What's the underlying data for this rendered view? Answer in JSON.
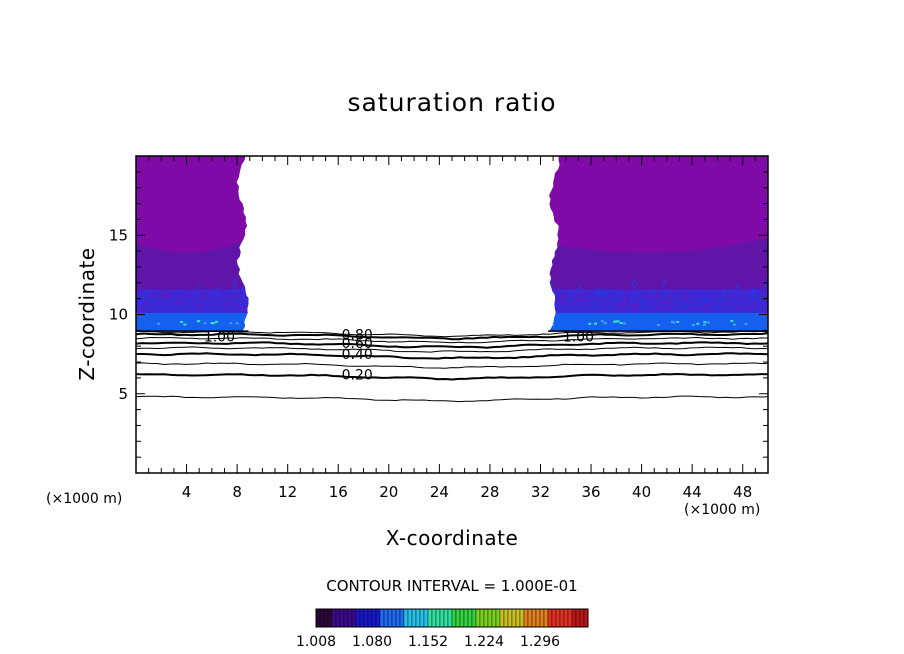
{
  "chart_data": {
    "type": "contour",
    "title": "saturation ratio",
    "xlabel": "X-coordinate",
    "ylabel": "Z-coordinate",
    "x_unit_left": "(×1000 m)",
    "x_unit_right": "(×1000 m)",
    "xlim": [
      0,
      50
    ],
    "ylim": [
      0,
      20
    ],
    "x_ticks": [
      4,
      8,
      12,
      16,
      20,
      24,
      28,
      32,
      36,
      40,
      44,
      48
    ],
    "y_ticks": [
      5,
      10,
      15
    ],
    "contour_interval_text": "CONTOUR INTERVAL = 1.000E-01",
    "contour_levels": [
      {
        "level": 0.1,
        "z": 4.8
      },
      {
        "level": 0.2,
        "z": 6.2,
        "label": "0.20"
      },
      {
        "level": 0.3,
        "z": 6.9
      },
      {
        "level": 0.4,
        "z": 7.5,
        "label": "0.40"
      },
      {
        "level": 0.5,
        "z": 7.9
      },
      {
        "level": 0.6,
        "z": 8.2,
        "label": "0.60"
      },
      {
        "level": 0.7,
        "z": 8.5
      },
      {
        "level": 0.8,
        "z": 8.75,
        "label": "0.80"
      },
      {
        "level": 0.9,
        "z": 8.9
      }
    ],
    "saturated_labels": [
      {
        "text": "1.00",
        "x": 6.6,
        "z": 8.6
      },
      {
        "text": "1.00",
        "x": 35.0,
        "z": 8.6
      }
    ],
    "saturated_regions": [
      {
        "x_from": 0,
        "x_to": 8.9,
        "z_from": 9.0,
        "z_to": 20
      },
      {
        "x_from": 32.6,
        "x_to": 50,
        "z_from": 9.0,
        "z_to": 20
      }
    ],
    "colorbar": {
      "ticks": [
        "1.008",
        "1.080",
        "1.152",
        "1.224",
        "1.296"
      ],
      "colors": [
        "#2a0838",
        "#3a0a8a",
        "#1818c8",
        "#1f6af0",
        "#29c0e8",
        "#2fe0a0",
        "#33d040",
        "#7ad020",
        "#c8c020",
        "#e08020",
        "#e03020",
        "#b81818"
      ]
    },
    "fill_colors": {
      "upper": "#7f0aa8",
      "mid": "#5a16a8",
      "low": "#3a2ad8",
      "base": "#1560ee",
      "highlight": "#30e8c0"
    }
  }
}
